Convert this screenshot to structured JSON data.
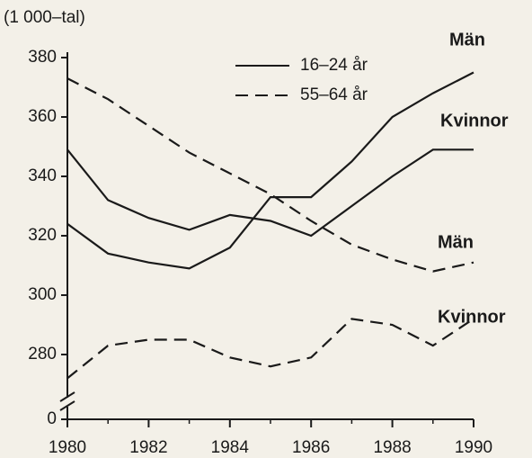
{
  "chart_data": {
    "type": "line",
    "ylabel": "(1 000–tal)",
    "x": [
      1980,
      1981,
      1982,
      1983,
      1984,
      1985,
      1986,
      1987,
      1988,
      1989,
      1990
    ],
    "xlim": [
      1980,
      1990
    ],
    "xticks": [
      1980,
      1982,
      1984,
      1986,
      1988,
      1990
    ],
    "ylim": [
      0,
      380
    ],
    "y_break": [
      0,
      270
    ],
    "yticks": [
      0,
      280,
      300,
      320,
      340,
      360,
      380
    ],
    "legend": [
      {
        "label": "16–24 år",
        "style": "solid"
      },
      {
        "label": "55–64 år",
        "style": "dashed"
      }
    ],
    "series": [
      {
        "name": "Män",
        "color": "#1a1a1a",
        "style": "solid",
        "values": [
          324,
          314,
          311,
          309,
          316,
          333,
          333,
          345,
          360,
          368,
          375
        ]
      },
      {
        "name": "Kvinnor",
        "color": "#1a1a1a",
        "style": "solid",
        "values": [
          349,
          332,
          326,
          322,
          327,
          325,
          320,
          330,
          340,
          349,
          349
        ]
      },
      {
        "name": "Män",
        "color": "#1a1a1a",
        "style": "dashed",
        "values": [
          373,
          366,
          357,
          348,
          341,
          334,
          325,
          317,
          312,
          308,
          311
        ]
      },
      {
        "name": "Kvinnor",
        "color": "#1a1a1a",
        "style": "dashed",
        "values": [
          272,
          283,
          285,
          285,
          279,
          276,
          279,
          292,
          290,
          283,
          292
        ]
      }
    ]
  }
}
